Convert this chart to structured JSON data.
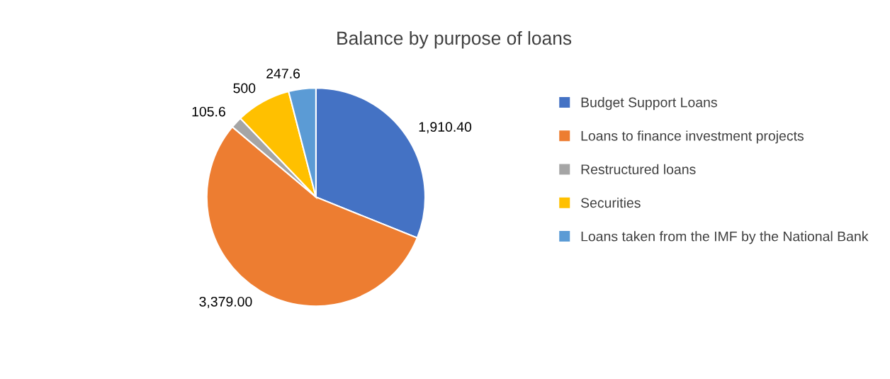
{
  "chart_data": {
    "type": "pie",
    "title": "Balance by purpose of loans",
    "categories": [
      "Budget Support Loans",
      "Loans to finance investment projects",
      "Restructured loans",
      "Securities",
      "Loans taken from the IMF by the National Bank"
    ],
    "values": [
      1910.4,
      3379.0,
      105.6,
      500,
      247.6
    ],
    "value_labels": [
      "1,910.40",
      "3,379.00",
      "105.6",
      "500",
      "247.6"
    ],
    "colors": [
      "#4472c4",
      "#ed7d31",
      "#a5a5a5",
      "#ffc000",
      "#5b9bd5"
    ],
    "legend": "right"
  }
}
